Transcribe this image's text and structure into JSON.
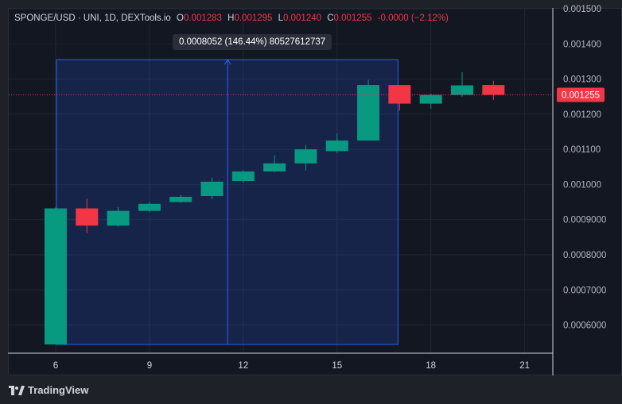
{
  "legend": {
    "symbol": "SPONGE/USD · UNI, 1D, DEXTools.io",
    "open_label": "O",
    "open": "0.001283",
    "high_label": "H",
    "high": "0.001295",
    "low_label": "L",
    "low": "0.001240",
    "close_label": "C",
    "close": "0.001255",
    "change": "-0.0000 (−2.12%)"
  },
  "measure": {
    "text": "0.0008052 (146.44%) 80527612737"
  },
  "last_price_label": "0.001255",
  "brand": {
    "name": "TradingView"
  },
  "colors": {
    "up": "#089981",
    "down": "#f23645",
    "measure": "#2962ff"
  },
  "chart_data": {
    "type": "candlestick",
    "x_ticks": [
      "6",
      "9",
      "12",
      "15",
      "18",
      "21"
    ],
    "y_ticks": [
      "0.0006000",
      "0.0007000",
      "0.0008000",
      "0.0009000",
      "0.001000",
      "0.001100",
      "0.001200",
      "0.001300",
      "0.001400",
      "0.001500"
    ],
    "ylim": [
      0.00052,
      0.0015
    ],
    "xlim": [
      4.5,
      21.9
    ],
    "last_price": 0.001255,
    "candles": [
      {
        "day": 6,
        "open": 0.000545,
        "high": 0.000935,
        "low": 0.000545,
        "close": 0.000932
      },
      {
        "day": 7,
        "open": 0.000932,
        "high": 0.00096,
        "low": 0.000862,
        "close": 0.000883
      },
      {
        "day": 8,
        "open": 0.000883,
        "high": 0.000935,
        "low": 0.00088,
        "close": 0.000925
      },
      {
        "day": 9,
        "open": 0.000925,
        "high": 0.00095,
        "low": 0.000922,
        "close": 0.000945
      },
      {
        "day": 10,
        "open": 0.00095,
        "high": 0.00097,
        "low": 0.000948,
        "close": 0.000965
      },
      {
        "day": 11,
        "open": 0.000967,
        "high": 0.00102,
        "low": 0.000958,
        "close": 0.001008
      },
      {
        "day": 12,
        "open": 0.00101,
        "high": 0.00104,
        "low": 0.001005,
        "close": 0.001037
      },
      {
        "day": 13,
        "open": 0.001037,
        "high": 0.001083,
        "low": 0.001035,
        "close": 0.00106
      },
      {
        "day": 14,
        "open": 0.00106,
        "high": 0.001112,
        "low": 0.00104,
        "close": 0.0011
      },
      {
        "day": 15,
        "open": 0.001095,
        "high": 0.001145,
        "low": 0.00109,
        "close": 0.001125
      },
      {
        "day": 16,
        "open": 0.001125,
        "high": 0.001298,
        "low": 0.001125,
        "close": 0.001283
      },
      {
        "day": 17,
        "open": 0.001283,
        "high": 0.001283,
        "low": 0.00121,
        "close": 0.00123
      },
      {
        "day": 18,
        "open": 0.00123,
        "high": 0.001258,
        "low": 0.001215,
        "close": 0.001255
      },
      {
        "day": 19,
        "open": 0.001255,
        "high": 0.00132,
        "low": 0.00125,
        "close": 0.001282
      },
      {
        "day": 20,
        "open": 0.001283,
        "high": 0.001295,
        "low": 0.00124,
        "close": 0.001255
      }
    ],
    "measure_range": {
      "x_start": 6,
      "x_end": 17,
      "y_low": 0.000545,
      "y_high": 0.001355,
      "arrow_x": 11.5
    }
  }
}
